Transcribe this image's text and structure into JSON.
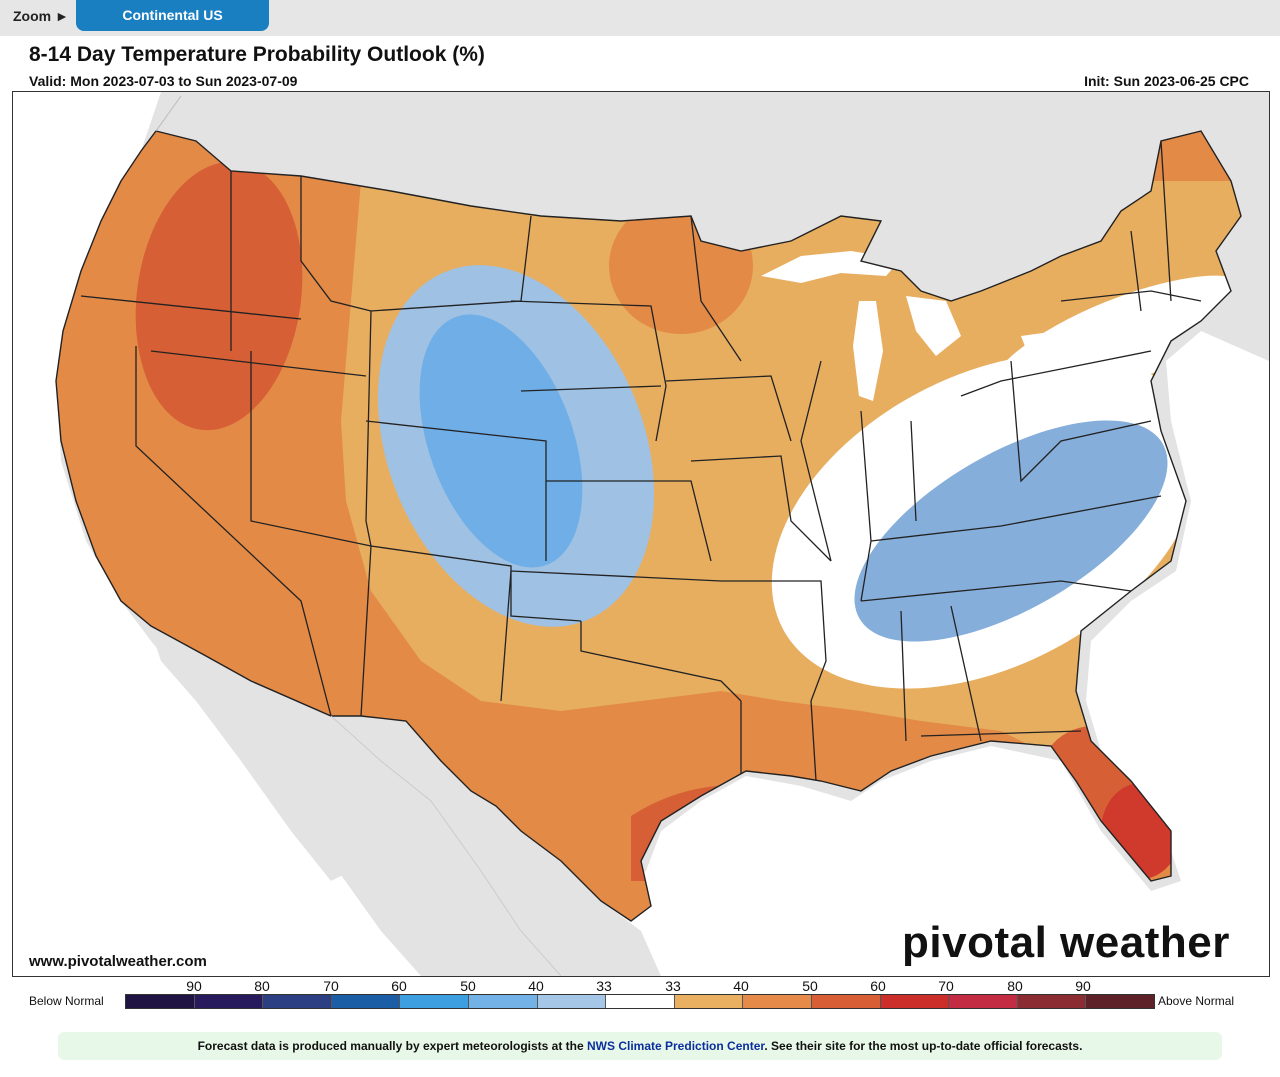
{
  "topbar": {
    "zoom_label": "Zoom ►",
    "region_button": "Continental US"
  },
  "header": {
    "title": "8-14 Day Temperature Probability Outlook (%)",
    "valid": "Valid: Mon 2023-07-03 to Sun 2023-07-09",
    "init": "Init: Sun 2023-06-25 CPC"
  },
  "map": {
    "site_url": "www.pivotalweather.com",
    "brand": "pivotal weather",
    "colors": {
      "water": "#ffffff",
      "outside_land": "#e3e3e3",
      "near_normal": "#ffffff",
      "above_40": "#e8ae60",
      "above_50": "#e38a47",
      "above_60": "#d65f36",
      "above_70": "#cf3a2c",
      "below_40": "#9ec1e4",
      "below_50": "#6faee6",
      "below_33_blue": "#86aedb"
    }
  },
  "legend": {
    "below_label": "Below Normal",
    "above_label": "Above Normal",
    "ticks": [
      "90",
      "80",
      "70",
      "60",
      "50",
      "40",
      "33",
      "33",
      "40",
      "50",
      "60",
      "70",
      "80",
      "90"
    ],
    "colors": [
      "#1f1442",
      "#271b5e",
      "#2b3f82",
      "#1b5ea6",
      "#3d9ee0",
      "#73b2e6",
      "#a5c6e7",
      "#ffffff",
      "#e9b062",
      "#e58a48",
      "#d85e36",
      "#cc2e2a",
      "#c42c43",
      "#8b2b32",
      "#5e2127"
    ]
  },
  "footer": {
    "text_before": "Forecast data is produced manually by expert meteorologists at the ",
    "link_text": "NWS Climate Prediction Center",
    "text_after": ". See their site for the most up-to-date official forecasts."
  }
}
